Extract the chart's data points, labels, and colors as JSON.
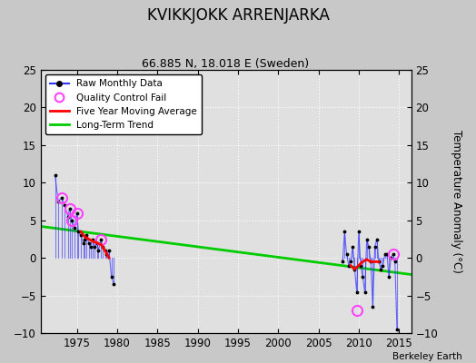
{
  "title": "KVIKKJOKK ARRENJARKA",
  "subtitle": "66.885 N, 18.018 E (Sweden)",
  "ylabel": "Temperature Anomaly (°C)",
  "credit": "Berkeley Earth",
  "xlim": [
    1970.5,
    2016.5
  ],
  "ylim": [
    -10,
    25
  ],
  "yticks": [
    -10,
    -5,
    0,
    5,
    10,
    15,
    20,
    25
  ],
  "xticks": [
    1975,
    1980,
    1985,
    1990,
    1995,
    2000,
    2005,
    2010,
    2015
  ],
  "background_color": "#c8c8c8",
  "plot_background": "#e0e0e0",
  "grid_color": "#ffffff",
  "raw_color": "#3333ff",
  "qc_color": "#ff44ff",
  "moving_avg_color": "#ff0000",
  "trend_color": "#00cc00",
  "early_times": [
    1972.3,
    1972.7,
    1973.1,
    1973.5,
    1973.9,
    1974.1,
    1974.4,
    1974.7,
    1975.0,
    1975.2,
    1975.5,
    1975.8,
    1976.0,
    1976.2,
    1976.5,
    1976.7,
    1977.0,
    1977.2,
    1977.5,
    1977.7,
    1978.0,
    1978.2,
    1978.5,
    1978.7,
    1979.0,
    1979.3,
    1979.6
  ],
  "early_values": [
    11.0,
    7.5,
    8.0,
    7.0,
    5.5,
    6.5,
    5.0,
    4.0,
    6.0,
    3.5,
    3.0,
    2.0,
    2.5,
    3.0,
    2.0,
    1.5,
    2.5,
    1.5,
    2.0,
    1.0,
    2.5,
    1.5,
    1.0,
    0.5,
    1.0,
    -2.5,
    -3.5
  ],
  "early_qc_times": [
    1973.1,
    1974.1,
    1974.4,
    1975.0,
    1978.0
  ],
  "early_qc_values": [
    8.0,
    6.5,
    5.0,
    6.0,
    2.5
  ],
  "late_times": [
    2008.0,
    2008.25,
    2008.5,
    2008.75,
    2009.0,
    2009.25,
    2009.5,
    2009.75,
    2010.0,
    2010.25,
    2010.5,
    2010.75,
    2011.0,
    2011.25,
    2011.5,
    2011.75,
    2012.0,
    2012.25,
    2012.5,
    2012.75,
    2013.0,
    2013.25,
    2013.5,
    2013.75,
    2014.0,
    2014.25,
    2014.5,
    2014.75
  ],
  "late_values": [
    -0.5,
    3.5,
    0.5,
    -1.0,
    -0.5,
    1.5,
    -1.5,
    -4.5,
    3.5,
    -1.0,
    -2.5,
    -4.5,
    2.5,
    1.5,
    -0.5,
    -6.5,
    1.5,
    2.5,
    -0.5,
    -1.5,
    -1.0,
    0.5,
    0.5,
    -2.5,
    0.0,
    0.5,
    -0.5,
    -9.5
  ],
  "late_qc_times": [
    2009.75,
    2014.25
  ],
  "late_qc_values": [
    -7.0,
    0.5
  ],
  "trend_x": [
    1970.5,
    2016.5
  ],
  "trend_y": [
    4.2,
    -2.2
  ],
  "early_ma_times": [
    1975.5,
    1976.0,
    1976.5,
    1977.0,
    1977.5,
    1978.0,
    1978.5,
    1979.0
  ],
  "early_ma_values": [
    3.5,
    2.8,
    2.5,
    2.2,
    2.0,
    1.8,
    1.0,
    0.0
  ],
  "late_ma_times": [
    2009.0,
    2009.5,
    2010.0,
    2010.5,
    2011.0,
    2011.5,
    2012.0,
    2012.5
  ],
  "late_ma_values": [
    -1.0,
    -1.5,
    -1.0,
    -0.5,
    -0.2,
    -0.5,
    -0.5,
    -0.5
  ]
}
